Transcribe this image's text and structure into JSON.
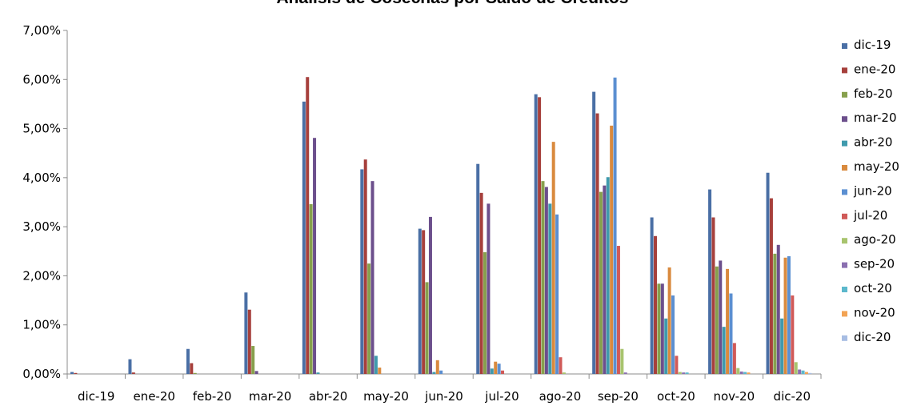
{
  "chart_data": {
    "type": "bar",
    "title": "Análisis de Cosechas por Saldo de Créditos",
    "ylim": [
      0,
      0.07
    ],
    "yticks": [
      "0,00%",
      "1,00%",
      "2,00%",
      "3,00%",
      "4,00%",
      "5,00%",
      "6,00%",
      "7,00%"
    ],
    "grid": false,
    "legend_position": "right",
    "categories": [
      "dic-19",
      "ene-20",
      "feb-20",
      "mar-20",
      "abr-20",
      "may-20",
      "jun-20",
      "jul-20",
      "ago-20",
      "sep-20",
      "oct-20",
      "nov-20",
      "dic-20"
    ],
    "series": [
      {
        "name": "dic-19",
        "color": "#4a6fa5",
        "values": [
          0.0004,
          0.003,
          0.0051,
          0.0166,
          0.0555,
          0.0417,
          0.0296,
          0.0428,
          0.057,
          0.0575,
          0.0319,
          0.0376,
          0.041
        ]
      },
      {
        "name": "ene-20",
        "color": "#a6403c",
        "values": [
          0.0002,
          0.0003,
          0.0022,
          0.0131,
          0.0605,
          0.0437,
          0.0293,
          0.0369,
          0.0564,
          0.0531,
          0.0281,
          0.0319,
          0.0358
        ]
      },
      {
        "name": "feb-20",
        "color": "#87a04d",
        "values": [
          0,
          0,
          0.0002,
          0.0057,
          0.0346,
          0.0225,
          0.0187,
          0.0248,
          0.0393,
          0.0371,
          0.0184,
          0.0219,
          0.0245
        ]
      },
      {
        "name": "mar-20",
        "color": "#6c4f8c",
        "values": [
          0,
          0,
          0,
          0.0006,
          0.0481,
          0.0393,
          0.032,
          0.0347,
          0.0381,
          0.0384,
          0.0184,
          0.0231,
          0.0263
        ]
      },
      {
        "name": "abr-20",
        "color": "#3f9aad",
        "values": [
          0,
          0,
          0,
          0,
          0.0003,
          0.0037,
          0.0004,
          0.0011,
          0.0347,
          0.0401,
          0.0113,
          0.0096,
          0.0113
        ]
      },
      {
        "name": "may-20",
        "color": "#d98a3e",
        "values": [
          0,
          0,
          0,
          0,
          0,
          0.0013,
          0.0028,
          0.0025,
          0.0473,
          0.0506,
          0.0217,
          0.0214,
          0.0237
        ]
      },
      {
        "name": "jun-20",
        "color": "#5b8fd1",
        "values": [
          0,
          0,
          0,
          0,
          0,
          0,
          0.0007,
          0.0021,
          0.0325,
          0.0604,
          0.016,
          0.0164,
          0.024
        ]
      },
      {
        "name": "jul-20",
        "color": "#d05a58",
        "values": [
          0,
          0,
          0,
          0,
          0,
          0,
          0,
          0.0007,
          0.0034,
          0.0261,
          0.0037,
          0.0063,
          0.016
        ]
      },
      {
        "name": "ago-20",
        "color": "#a8c46e",
        "values": [
          0,
          0,
          0,
          0,
          0,
          0,
          0,
          0,
          0.0003,
          0.0051,
          0.0004,
          0.0012,
          0.0024
        ]
      },
      {
        "name": "sep-20",
        "color": "#8a6fb0",
        "values": [
          0,
          0,
          0,
          0,
          0,
          0,
          0,
          0,
          0,
          0.0003,
          0.0003,
          0.0005,
          0.0009
        ]
      },
      {
        "name": "oct-20",
        "color": "#5cb8cc",
        "values": [
          0,
          0,
          0,
          0,
          0,
          0,
          0,
          0,
          0,
          0,
          0.0003,
          0.0004,
          0.0007
        ]
      },
      {
        "name": "nov-20",
        "color": "#f2a354",
        "values": [
          0,
          0,
          0,
          0,
          0,
          0,
          0,
          0,
          0,
          0,
          0,
          0.0003,
          0.0004
        ]
      },
      {
        "name": "dic-20",
        "color": "#a7bde3",
        "values": [
          0,
          0,
          0,
          0,
          0,
          0,
          0,
          0,
          0,
          0,
          0,
          0,
          0.0002
        ]
      }
    ]
  }
}
